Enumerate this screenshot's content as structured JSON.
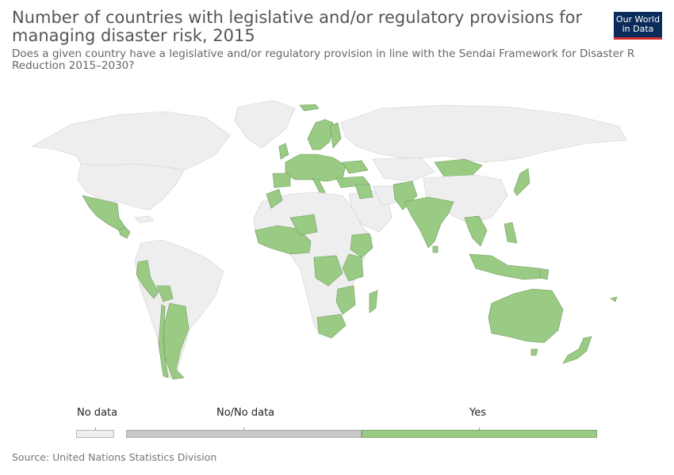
{
  "title": "Number of countries with legislative and/or regulatory provisions for managing disaster risk, 2015",
  "subtitle_line1": "Does a given country have a legislative and/or regulatory provision in line with the Sendai Framework for Disaster R",
  "subtitle_line2": "Reduction 2015–2030?",
  "logo": {
    "line1": "Our World",
    "line2": "in Data"
  },
  "legend": {
    "items": [
      {
        "label": "No data",
        "color": "#eeeeee"
      },
      {
        "label": "No/No data",
        "color": "#c8c8c8"
      },
      {
        "label": "Yes",
        "color": "#9acb84"
      }
    ]
  },
  "colors": {
    "yes": "#9acb84",
    "no_data": "#eeeeee",
    "no": "#c8c8c8"
  },
  "source": "Source: United Nations Statistics Division"
}
